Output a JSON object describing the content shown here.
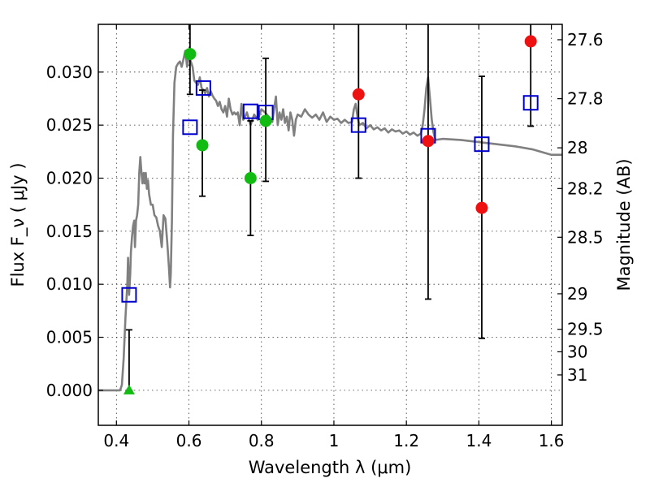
{
  "chart_data": {
    "type": "scatter",
    "xlabel": "Wavelength  λ (μm)",
    "ylabel": "Flux  F_ν  ( μJy )",
    "y2label": "Magnitude (AB)",
    "xlim": [
      0.35,
      1.63
    ],
    "ylim": [
      -0.0033,
      0.0345
    ],
    "xticks": [
      0.4,
      0.6,
      0.8,
      1.0,
      1.2,
      1.4,
      1.6
    ],
    "xtick_labels": [
      "0.4",
      "0.6",
      "0.8",
      "1",
      "1.2",
      "1.4",
      "1.6"
    ],
    "yticks": [
      0.0,
      0.005,
      0.01,
      0.015,
      0.02,
      0.025,
      0.03
    ],
    "ytick_labels": [
      "0.000",
      "0.005",
      "0.010",
      "0.015",
      "0.020",
      "0.025",
      "0.030"
    ],
    "mag_ticks": [
      {
        "label": "27.6",
        "flux": 0.03305
      },
      {
        "label": "27.8",
        "flux": 0.02749
      },
      {
        "label": "28",
        "flux": 0.02286
      },
      {
        "label": "28.2",
        "flux": 0.01902
      },
      {
        "label": "28.5",
        "flux": 0.01443
      },
      {
        "label": "29",
        "flux": 0.0091
      },
      {
        "label": "29.5",
        "flux": 0.00575
      },
      {
        "label": "30",
        "flux": 0.00363
      },
      {
        "label": "31",
        "flux": 0.00145
      }
    ],
    "grid": true,
    "colors": {
      "model": "#808080",
      "green": "#11bb11",
      "red": "#ee1111",
      "squares": "#0000cc",
      "errorbar": "#000000"
    },
    "model_spectrum": [
      [
        0.35,
        0.0
      ],
      [
        0.4,
        0.0
      ],
      [
        0.41,
        0.0
      ],
      [
        0.415,
        0.0005
      ],
      [
        0.42,
        0.003
      ],
      [
        0.425,
        0.007
      ],
      [
        0.43,
        0.01
      ],
      [
        0.432,
        0.0125
      ],
      [
        0.435,
        0.009
      ],
      [
        0.438,
        0.011
      ],
      [
        0.44,
        0.013
      ],
      [
        0.443,
        0.0145
      ],
      [
        0.446,
        0.0155
      ],
      [
        0.449,
        0.016
      ],
      [
        0.451,
        0.0135
      ],
      [
        0.454,
        0.016
      ],
      [
        0.457,
        0.0165
      ],
      [
        0.46,
        0.0175
      ],
      [
        0.463,
        0.0205
      ],
      [
        0.466,
        0.022
      ],
      [
        0.469,
        0.0205
      ],
      [
        0.472,
        0.0195
      ],
      [
        0.475,
        0.0205
      ],
      [
        0.478,
        0.0195
      ],
      [
        0.481,
        0.0205
      ],
      [
        0.484,
        0.019
      ],
      [
        0.487,
        0.0198
      ],
      [
        0.49,
        0.0185
      ],
      [
        0.495,
        0.0175
      ],
      [
        0.5,
        0.0175
      ],
      [
        0.505,
        0.0165
      ],
      [
        0.51,
        0.0163
      ],
      [
        0.515,
        0.0155
      ],
      [
        0.52,
        0.015
      ],
      [
        0.525,
        0.0135
      ],
      [
        0.53,
        0.0165
      ],
      [
        0.535,
        0.0162
      ],
      [
        0.54,
        0.014
      ],
      [
        0.545,
        0.0115
      ],
      [
        0.548,
        0.0097
      ],
      [
        0.55,
        0.011
      ],
      [
        0.553,
        0.016
      ],
      [
        0.556,
        0.024
      ],
      [
        0.56,
        0.029
      ],
      [
        0.565,
        0.0305
      ],
      [
        0.57,
        0.0308
      ],
      [
        0.575,
        0.031
      ],
      [
        0.58,
        0.0305
      ],
      [
        0.585,
        0.0312
      ],
      [
        0.59,
        0.032
      ],
      [
        0.595,
        0.0305
      ],
      [
        0.6,
        0.0315
      ],
      [
        0.605,
        0.031
      ],
      [
        0.61,
        0.0305
      ],
      [
        0.615,
        0.0292
      ],
      [
        0.62,
        0.029
      ],
      [
        0.625,
        0.0288
      ],
      [
        0.63,
        0.0295
      ],
      [
        0.635,
        0.0285
      ],
      [
        0.64,
        0.0283
      ],
      [
        0.645,
        0.028
      ],
      [
        0.65,
        0.0285
      ],
      [
        0.655,
        0.0277
      ],
      [
        0.66,
        0.0282
      ],
      [
        0.665,
        0.0278
      ],
      [
        0.67,
        0.0275
      ],
      [
        0.675,
        0.0273
      ],
      [
        0.68,
        0.0268
      ],
      [
        0.685,
        0.0272
      ],
      [
        0.69,
        0.0265
      ],
      [
        0.695,
        0.0262
      ],
      [
        0.7,
        0.0268
      ],
      [
        0.705,
        0.0258
      ],
      [
        0.71,
        0.0275
      ],
      [
        0.715,
        0.0265
      ],
      [
        0.72,
        0.026
      ],
      [
        0.725,
        0.0262
      ],
      [
        0.73,
        0.026
      ],
      [
        0.735,
        0.0262
      ],
      [
        0.74,
        0.025
      ],
      [
        0.745,
        0.027
      ],
      [
        0.75,
        0.0255
      ],
      [
        0.755,
        0.0258
      ],
      [
        0.76,
        0.0262
      ],
      [
        0.77,
        0.025
      ],
      [
        0.78,
        0.026
      ],
      [
        0.79,
        0.0255
      ],
      [
        0.8,
        0.0265
      ],
      [
        0.81,
        0.0262
      ],
      [
        0.82,
        0.0258
      ],
      [
        0.83,
        0.0253
      ],
      [
        0.84,
        0.0277
      ],
      [
        0.845,
        0.025
      ],
      [
        0.85,
        0.0262
      ],
      [
        0.855,
        0.0255
      ],
      [
        0.86,
        0.0265
      ],
      [
        0.865,
        0.0252
      ],
      [
        0.87,
        0.0258
      ],
      [
        0.875,
        0.0245
      ],
      [
        0.88,
        0.0262
      ],
      [
        0.885,
        0.0255
      ],
      [
        0.89,
        0.024
      ],
      [
        0.895,
        0.0255
      ],
      [
        0.9,
        0.026
      ],
      [
        0.91,
        0.0258
      ],
      [
        0.92,
        0.0265
      ],
      [
        0.93,
        0.026
      ],
      [
        0.94,
        0.0257
      ],
      [
        0.95,
        0.026
      ],
      [
        0.96,
        0.0255
      ],
      [
        0.97,
        0.0262
      ],
      [
        0.98,
        0.0253
      ],
      [
        0.99,
        0.0258
      ],
      [
        1.0,
        0.0255
      ],
      [
        1.01,
        0.0256
      ],
      [
        1.02,
        0.0252
      ],
      [
        1.03,
        0.0255
      ],
      [
        1.04,
        0.0252
      ],
      [
        1.05,
        0.0253
      ],
      [
        1.055,
        0.0265
      ],
      [
        1.06,
        0.027
      ],
      [
        1.065,
        0.0258
      ],
      [
        1.07,
        0.025
      ],
      [
        1.08,
        0.0252
      ],
      [
        1.09,
        0.0247
      ],
      [
        1.1,
        0.025
      ],
      [
        1.11,
        0.0246
      ],
      [
        1.12,
        0.0248
      ],
      [
        1.13,
        0.0245
      ],
      [
        1.14,
        0.0247
      ],
      [
        1.15,
        0.0243
      ],
      [
        1.16,
        0.0246
      ],
      [
        1.17,
        0.0244
      ],
      [
        1.18,
        0.0245
      ],
      [
        1.19,
        0.0242
      ],
      [
        1.2,
        0.0244
      ],
      [
        1.21,
        0.0241
      ],
      [
        1.22,
        0.0243
      ],
      [
        1.23,
        0.024
      ],
      [
        1.24,
        0.0242
      ],
      [
        1.245,
        0.025
      ],
      [
        1.25,
        0.0265
      ],
      [
        1.255,
        0.0285
      ],
      [
        1.26,
        0.0295
      ],
      [
        1.265,
        0.0275
      ],
      [
        1.27,
        0.0255
      ],
      [
        1.275,
        0.0243
      ],
      [
        1.28,
        0.0236
      ],
      [
        1.3,
        0.0237
      ],
      [
        1.35,
        0.0236
      ],
      [
        1.4,
        0.0234
      ],
      [
        1.45,
        0.0232
      ],
      [
        1.5,
        0.023
      ],
      [
        1.55,
        0.0227
      ],
      [
        1.6,
        0.0222
      ],
      [
        1.63,
        0.0222
      ]
    ],
    "series": [
      {
        "marker": "circle",
        "color": "#11bb11",
        "points": [
          {
            "x": 0.603,
            "y": 0.0317
          },
          {
            "x": 0.637,
            "y": 0.0231
          },
          {
            "x": 0.77,
            "y": 0.02
          },
          {
            "x": 0.812,
            "y": 0.0254
          }
        ]
      },
      {
        "marker": "circle",
        "color": "#ee1111",
        "points": [
          {
            "x": 1.068,
            "y": 0.0279
          },
          {
            "x": 1.26,
            "y": 0.0235
          },
          {
            "x": 1.408,
            "y": 0.0172
          },
          {
            "x": 1.543,
            "y": 0.0329
          }
        ]
      },
      {
        "marker": "triangle",
        "color": "#11bb11",
        "points": [
          {
            "x": 0.435,
            "y": 0.0
          }
        ]
      },
      {
        "marker": "square-open",
        "color": "#0000cc",
        "points": [
          {
            "x": 0.435,
            "y": 0.009
          },
          {
            "x": 0.603,
            "y": 0.0248
          },
          {
            "x": 0.64,
            "y": 0.0285
          },
          {
            "x": 0.77,
            "y": 0.0263
          },
          {
            "x": 0.812,
            "y": 0.0262
          },
          {
            "x": 1.068,
            "y": 0.025
          },
          {
            "x": 1.26,
            "y": 0.024
          },
          {
            "x": 1.408,
            "y": 0.0232
          },
          {
            "x": 1.543,
            "y": 0.0271
          }
        ]
      }
    ],
    "errorbars": [
      {
        "x": 0.435,
        "low": 0.0,
        "high": 0.0057
      },
      {
        "x": 0.603,
        "low": 0.0279,
        "high": 0.0345
      },
      {
        "x": 0.637,
        "low": 0.0183,
        "high": 0.0283
      },
      {
        "x": 0.77,
        "low": 0.0146,
        "high": 0.0254
      },
      {
        "x": 0.812,
        "low": 0.0197,
        "high": 0.0313
      },
      {
        "x": 1.068,
        "low": 0.02,
        "high": 0.0345
      },
      {
        "x": 1.26,
        "low": 0.0086,
        "high": 0.0345
      },
      {
        "x": 1.408,
        "low": 0.0049,
        "high": 0.0296
      },
      {
        "x": 1.543,
        "low": 0.0249,
        "high": 0.0345
      }
    ]
  }
}
